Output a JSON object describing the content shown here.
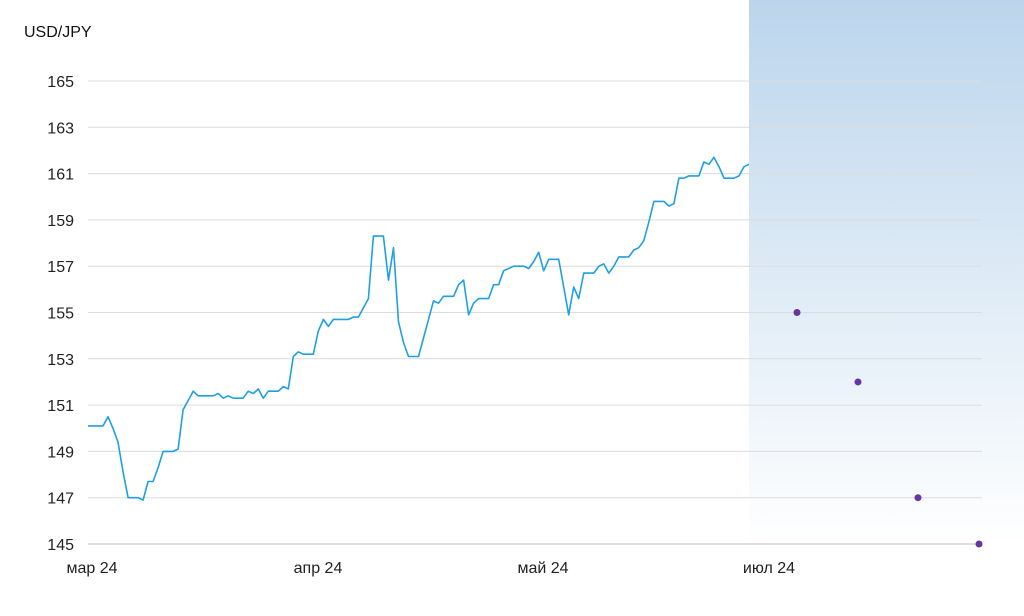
{
  "chart_data": {
    "type": "line",
    "ylabel": "USD/JPY",
    "xlabel": "",
    "title": "",
    "ylim": [
      145,
      165
    ],
    "yticks": [
      145,
      147,
      149,
      151,
      153,
      155,
      157,
      159,
      161,
      163,
      165
    ],
    "xticks": [
      "мар 24",
      "апр 24",
      "май 24",
      "июл 24"
    ],
    "grid": true,
    "colors": {
      "line": "#1fa0e0",
      "forecast_marker": "#6a35a0",
      "forecast_shade_top": "#bcd5ec",
      "forecast_shade_bottom": "#ffffff",
      "grid": "#dcdcdc",
      "axis": "#bdbdbd"
    },
    "series": [
      {
        "values": [
          150.1,
          150.1,
          150.1,
          150.1,
          150.5,
          150.0,
          149.4,
          148.1,
          147.0,
          147.0,
          147.0,
          146.9,
          147.7,
          147.7,
          148.3,
          149.0,
          149.0,
          149.0,
          149.1,
          150.8,
          151.2,
          151.6,
          151.4,
          151.4,
          151.4,
          151.4,
          151.5,
          151.3,
          151.4,
          151.3,
          151.3,
          151.3,
          151.6,
          151.5,
          151.7,
          151.3,
          151.6,
          151.6,
          151.6,
          151.8,
          151.7,
          153.1,
          153.3,
          153.2,
          153.2,
          153.2,
          154.2,
          154.7,
          154.4,
          154.7,
          154.7,
          154.7,
          154.7,
          154.8,
          154.8,
          155.2,
          155.6,
          158.3,
          158.3,
          158.3,
          156.4,
          157.8,
          154.6,
          153.7,
          153.1,
          153.1,
          153.1,
          153.9,
          154.7,
          155.5,
          155.4,
          155.7,
          155.7,
          155.7,
          156.2,
          156.4,
          154.9,
          155.4,
          155.6,
          155.6,
          155.6,
          156.2,
          156.2,
          156.8,
          156.9,
          157.0,
          157.0,
          157.0,
          156.9,
          157.2,
          157.6,
          156.8,
          157.3,
          157.3,
          157.3,
          156.1,
          154.9,
          156.1,
          155.6,
          156.7,
          156.7,
          156.7,
          157.0,
          157.1,
          156.7,
          157.0,
          157.4,
          157.4,
          157.4,
          157.7,
          157.8,
          158.1,
          158.9,
          159.8,
          159.8,
          159.8,
          159.6,
          159.7,
          160.8,
          160.8,
          160.9,
          160.9,
          160.9,
          161.5,
          161.4,
          161.7,
          161.3,
          160.8,
          160.8,
          160.8,
          160.9,
          161.3,
          161.4
        ]
      },
      {
        "values": [
          155,
          152,
          147,
          145
        ]
      }
    ]
  }
}
